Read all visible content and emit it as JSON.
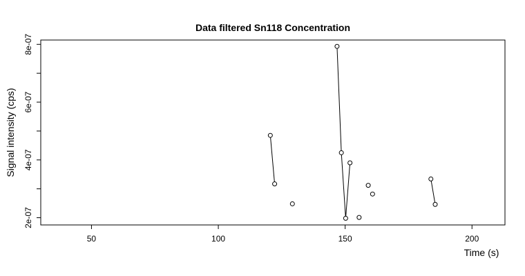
{
  "chart_data": {
    "type": "scatter",
    "title": "Data filtered Sn118 Concentration",
    "xlabel": "Time (s)",
    "ylabel": "Signal intensity (cps)",
    "xlim": [
      30,
      213
    ],
    "ylim": [
      1.75e-07,
      8.15e-07
    ],
    "x_ticks": [
      50,
      100,
      150,
      200
    ],
    "x_tick_labels": [
      "50",
      "100",
      "150",
      "200"
    ],
    "y_ticks": [
      2e-07,
      3e-07,
      4e-07,
      5e-07,
      6e-07,
      7e-07,
      8e-07
    ],
    "y_tick_labels": [
      "2e-07",
      "",
      "4e-07",
      "",
      "6e-07",
      "",
      "8e-07"
    ],
    "grid": false,
    "legend": "none",
    "colors": {
      "points": "#000000",
      "lines": "#000000",
      "frame": "#000000"
    },
    "series": [
      {
        "points": [
          {
            "x": 120.5,
            "y": 4.85e-07
          },
          {
            "x": 122.2,
            "y": 3.17e-07
          },
          {
            "x": 129.2,
            "y": 2.48e-07
          },
          {
            "x": 146.8,
            "y": 7.93e-07
          },
          {
            "x": 148.5,
            "y": 4.25e-07
          },
          {
            "x": 150.2,
            "y": 1.98e-07
          },
          {
            "x": 151.9,
            "y": 3.9e-07
          },
          {
            "x": 155.5,
            "y": 2.01e-07
          },
          {
            "x": 159.1,
            "y": 3.12e-07
          },
          {
            "x": 160.8,
            "y": 2.82e-07
          },
          {
            "x": 183.8,
            "y": 3.34e-07
          },
          {
            "x": 185.5,
            "y": 2.46e-07
          }
        ],
        "segments": [
          [
            0,
            1
          ],
          [
            3,
            4,
            5,
            6
          ],
          [
            10,
            11
          ]
        ]
      }
    ]
  }
}
